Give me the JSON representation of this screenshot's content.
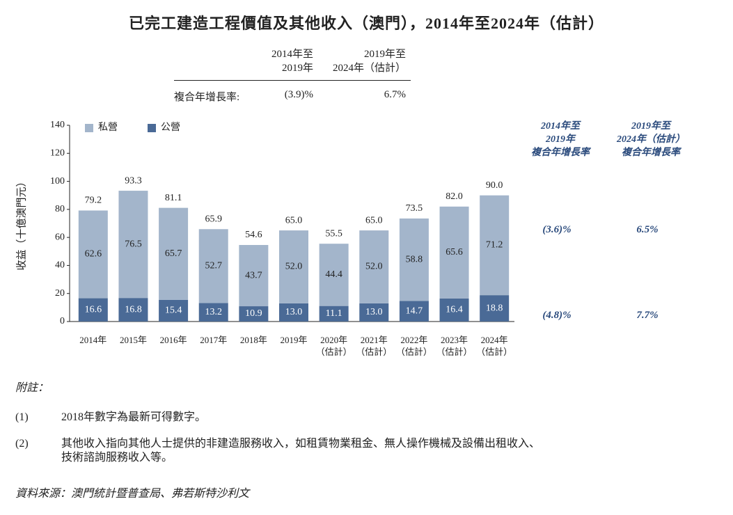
{
  "chart_data": {
    "type": "bar",
    "stacked": true,
    "title": "已完工建造工程價值及其他收入（澳門），2014年至2024年（估計）",
    "ylabel": "收益（十億澳門元）",
    "categories": [
      "2014年",
      "2015年",
      "2016年",
      "2017年",
      "2018年",
      "2019年",
      "2020年\n（估計）",
      "2021年\n（估計）",
      "2022年\n（估計）",
      "2023年\n（估計）",
      "2024年\n（估計）"
    ],
    "series": [
      {
        "name": "公營",
        "color": "#4a6a96",
        "values": [
          16.6,
          16.8,
          15.4,
          13.2,
          10.9,
          13.0,
          11.1,
          13.0,
          14.7,
          16.4,
          18.8
        ],
        "value_labels": [
          "16.6",
          "16.8",
          "15.4",
          "13.2",
          "10.9",
          "13.0",
          "11.1",
          "13.0",
          "14.7",
          "16.4",
          "18.8"
        ]
      },
      {
        "name": "私營",
        "color": "#a3b5cb",
        "values": [
          62.6,
          76.5,
          65.7,
          52.7,
          43.7,
          52.0,
          44.4,
          52.0,
          58.8,
          65.6,
          71.2
        ],
        "value_labels": [
          "62.6",
          "76.5",
          "65.7",
          "52.7",
          "43.7",
          "52.0",
          "44.4",
          "52.0",
          "58.8",
          "65.6",
          "71.2"
        ]
      }
    ],
    "totals": {
      "values": [
        79.2,
        93.3,
        81.1,
        65.9,
        54.6,
        65.0,
        55.5,
        65.0,
        73.5,
        82.0,
        90.0
      ],
      "value_labels": [
        "79.2",
        "93.3",
        "81.1",
        "65.9",
        "54.6",
        "65.0",
        "55.5",
        "65.0",
        "73.5",
        "82.0",
        "90.0"
      ]
    },
    "ylim": [
      0,
      140
    ],
    "yticks": [
      0,
      20,
      40,
      60,
      80,
      100,
      120,
      140
    ],
    "legend": "top-left"
  },
  "cagr_table": {
    "headers": [
      "2014年至\n2019年",
      "2019年至\n2024年（估計）"
    ],
    "row_label": "複合年增長率:",
    "values": [
      "(3.9)%",
      "6.7%"
    ]
  },
  "cagr_by_segment": {
    "headers": [
      "2014年至\n2019年\n複合年增長率",
      "2019年至\n2024年（估計）\n複合年增長率"
    ],
    "rows": [
      [
        "(3.6)%",
        "6.5%"
      ],
      [
        "(4.8)%",
        "7.7%"
      ]
    ]
  },
  "notes": {
    "heading": "附註：",
    "items": [
      {
        "number": "(1)",
        "text": "2018年數字為最新可得數字。"
      },
      {
        "number": "(2)",
        "text": "其他收入指向其他人士提供的非建造服務收入，如租賃物業租金、無人操作機械及設備出租收入、\n技術諮詢服務收入等。"
      }
    ]
  },
  "source": "資料來源：澳門統計暨普查局、弗若斯特沙利文"
}
